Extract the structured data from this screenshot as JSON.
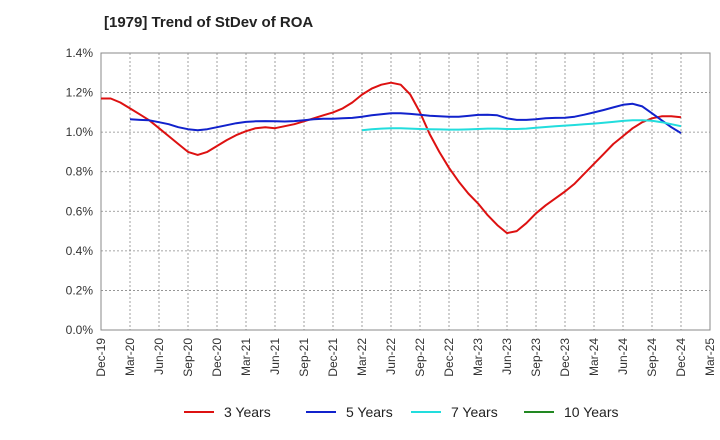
{
  "chart_data": {
    "type": "line",
    "title": "[1979]  Trend of StDev of ROA",
    "xlabel": "",
    "ylabel": "",
    "ylim": [
      0,
      1.4
    ],
    "y_tick_step": 0.2,
    "y_ticks": [
      "0.0%",
      "0.2%",
      "0.4%",
      "0.6%",
      "0.8%",
      "1.0%",
      "1.2%",
      "1.4%"
    ],
    "x_range": [
      "2019-12",
      "2025-03"
    ],
    "x_ticks": [
      "Dec-19",
      "Mar-20",
      "Jun-20",
      "Sep-20",
      "Dec-20",
      "Mar-21",
      "Jun-21",
      "Sep-21",
      "Dec-21",
      "Mar-22",
      "Jun-22",
      "Sep-22",
      "Dec-22",
      "Mar-23",
      "Jun-23",
      "Sep-23",
      "Dec-23",
      "Mar-24",
      "Jun-24",
      "Sep-24",
      "Dec-24",
      "Mar-25"
    ],
    "grid": true,
    "legend_position": "bottom",
    "series": [
      {
        "name": "3 Years",
        "color": "#dd1111",
        "x": [
          "2019-12",
          "2020-01",
          "2020-02",
          "2020-03",
          "2020-04",
          "2020-05",
          "2020-06",
          "2020-07",
          "2020-08",
          "2020-09",
          "2020-10",
          "2020-11",
          "2020-12",
          "2021-01",
          "2021-02",
          "2021-03",
          "2021-04",
          "2021-05",
          "2021-06",
          "2021-07",
          "2021-08",
          "2021-09",
          "2021-10",
          "2021-11",
          "2021-12",
          "2022-01",
          "2022-02",
          "2022-03",
          "2022-04",
          "2022-05",
          "2022-06",
          "2022-07",
          "2022-08",
          "2022-09",
          "2022-10",
          "2022-11",
          "2022-12",
          "2023-01",
          "2023-02",
          "2023-03",
          "2023-04",
          "2023-05",
          "2023-06",
          "2023-07",
          "2023-08",
          "2023-09",
          "2023-10",
          "2023-11",
          "2023-12",
          "2024-01",
          "2024-02",
          "2024-03",
          "2024-04",
          "2024-05",
          "2024-06",
          "2024-07",
          "2024-08",
          "2024-09",
          "2024-10",
          "2024-11",
          "2024-12"
        ],
        "values": [
          1.17,
          1.17,
          1.15,
          1.12,
          1.09,
          1.06,
          1.02,
          0.98,
          0.94,
          0.9,
          0.885,
          0.9,
          0.93,
          0.96,
          0.985,
          1.005,
          1.02,
          1.025,
          1.02,
          1.03,
          1.04,
          1.055,
          1.07,
          1.085,
          1.1,
          1.12,
          1.15,
          1.19,
          1.22,
          1.24,
          1.25,
          1.24,
          1.19,
          1.1,
          0.99,
          0.9,
          0.82,
          0.75,
          0.69,
          0.64,
          0.58,
          0.53,
          0.49,
          0.5,
          0.54,
          0.59,
          0.63,
          0.665,
          0.7,
          0.74,
          0.79,
          0.84,
          0.89,
          0.94,
          0.98,
          1.02,
          1.05,
          1.07,
          1.08,
          1.08,
          1.075
        ]
      },
      {
        "name": "5 Years",
        "color": "#1122cc",
        "x": [
          "2020-03",
          "2020-04",
          "2020-05",
          "2020-06",
          "2020-07",
          "2020-08",
          "2020-09",
          "2020-10",
          "2020-11",
          "2020-12",
          "2021-01",
          "2021-02",
          "2021-03",
          "2021-04",
          "2021-05",
          "2021-06",
          "2021-07",
          "2021-08",
          "2021-09",
          "2021-10",
          "2021-11",
          "2021-12",
          "2022-01",
          "2022-02",
          "2022-03",
          "2022-04",
          "2022-05",
          "2022-06",
          "2022-07",
          "2022-08",
          "2022-09",
          "2022-10",
          "2022-11",
          "2022-12",
          "2023-01",
          "2023-02",
          "2023-03",
          "2023-04",
          "2023-05",
          "2023-06",
          "2023-07",
          "2023-08",
          "2023-09",
          "2023-10",
          "2023-11",
          "2023-12",
          "2024-01",
          "2024-02",
          "2024-03",
          "2024-04",
          "2024-05",
          "2024-06",
          "2024-07",
          "2024-08",
          "2024-09",
          "2024-10",
          "2024-11",
          "2024-12"
        ],
        "values": [
          1.065,
          1.062,
          1.06,
          1.05,
          1.04,
          1.025,
          1.015,
          1.01,
          1.015,
          1.025,
          1.035,
          1.045,
          1.052,
          1.055,
          1.056,
          1.055,
          1.054,
          1.056,
          1.06,
          1.065,
          1.068,
          1.068,
          1.07,
          1.072,
          1.078,
          1.085,
          1.09,
          1.095,
          1.095,
          1.092,
          1.088,
          1.083,
          1.08,
          1.078,
          1.078,
          1.082,
          1.087,
          1.088,
          1.085,
          1.07,
          1.062,
          1.062,
          1.065,
          1.07,
          1.072,
          1.073,
          1.078,
          1.088,
          1.1,
          1.112,
          1.125,
          1.138,
          1.143,
          1.13,
          1.095,
          1.06,
          1.025,
          0.995
        ]
      },
      {
        "name": "7 Years",
        "color": "#22dddd",
        "x": [
          "2022-03",
          "2022-04",
          "2022-05",
          "2022-06",
          "2022-07",
          "2022-08",
          "2022-09",
          "2022-10",
          "2022-11",
          "2022-12",
          "2023-01",
          "2023-02",
          "2023-03",
          "2023-04",
          "2023-05",
          "2023-06",
          "2023-07",
          "2023-08",
          "2023-09",
          "2023-10",
          "2023-11",
          "2023-12",
          "2024-01",
          "2024-02",
          "2024-03",
          "2024-04",
          "2024-05",
          "2024-06",
          "2024-07",
          "2024-08",
          "2024-09",
          "2024-10",
          "2024-11",
          "2024-12"
        ],
        "values": [
          1.01,
          1.015,
          1.018,
          1.02,
          1.02,
          1.018,
          1.016,
          1.015,
          1.014,
          1.013,
          1.013,
          1.014,
          1.016,
          1.018,
          1.018,
          1.016,
          1.016,
          1.018,
          1.022,
          1.026,
          1.03,
          1.033,
          1.036,
          1.04,
          1.043,
          1.047,
          1.052,
          1.057,
          1.06,
          1.06,
          1.058,
          1.05,
          1.04,
          1.03
        ]
      },
      {
        "name": "10 Years",
        "color": "#228822",
        "x": [],
        "values": []
      }
    ]
  }
}
